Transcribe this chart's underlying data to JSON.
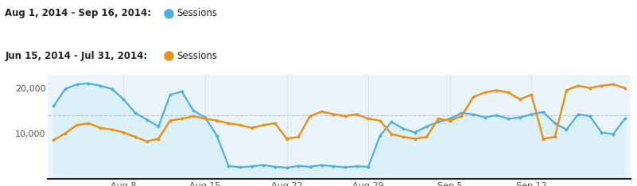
{
  "title_line1": "Aug 1, 2014 - Sep 16, 2014:",
  "title_line2": "Jun 15, 2014 - Jul 31, 2014:",
  "legend_label": "Sessions",
  "color_blue": "#4DAEE8",
  "color_orange": "#E8921A",
  "fill_color": "#DCF0FA",
  "bg_color": "#ffffff",
  "plot_bg_color": "#EAF4FB",
  "yticks": [
    10000,
    20000
  ],
  "ylim": [
    0,
    23000
  ],
  "grid_line_y": 14000,
  "blue_series": [
    16000,
    19800,
    20800,
    21000,
    20500,
    19800,
    17500,
    14500,
    13000,
    11500,
    18500,
    19200,
    15000,
    13500,
    9500,
    2800,
    2500,
    2700,
    3000,
    2600,
    2400,
    2800,
    2600,
    3000,
    2700,
    2500,
    2700,
    2600,
    9500,
    12500,
    11000,
    10200,
    11500,
    12500,
    13200,
    14500,
    14200,
    13500,
    14000,
    13200,
    13500,
    14200,
    14700,
    12200,
    10800,
    14200,
    13800,
    10200,
    9800,
    13200
  ],
  "orange_series": [
    8500,
    10000,
    11800,
    12200,
    11200,
    10800,
    10200,
    9200,
    8200,
    8800,
    12800,
    13200,
    13800,
    13200,
    12800,
    12200,
    11800,
    11200,
    11800,
    12200,
    8800,
    9200,
    13800,
    14800,
    14200,
    13800,
    14200,
    13200,
    12800,
    9800,
    9200,
    8800,
    9200,
    13200,
    12800,
    13800,
    18000,
    19000,
    19500,
    19000,
    17500,
    18500,
    8800,
    9200,
    19500,
    20500,
    20000,
    20500,
    20800,
    20000
  ],
  "n_points": 50,
  "xtick_positions": [
    6,
    13,
    20,
    27,
    34,
    41
  ],
  "xtick_labels": [
    "Aug 8",
    "Aug 15",
    "Aug 22",
    "Aug 29",
    "Sep 5",
    "Sep 12"
  ]
}
